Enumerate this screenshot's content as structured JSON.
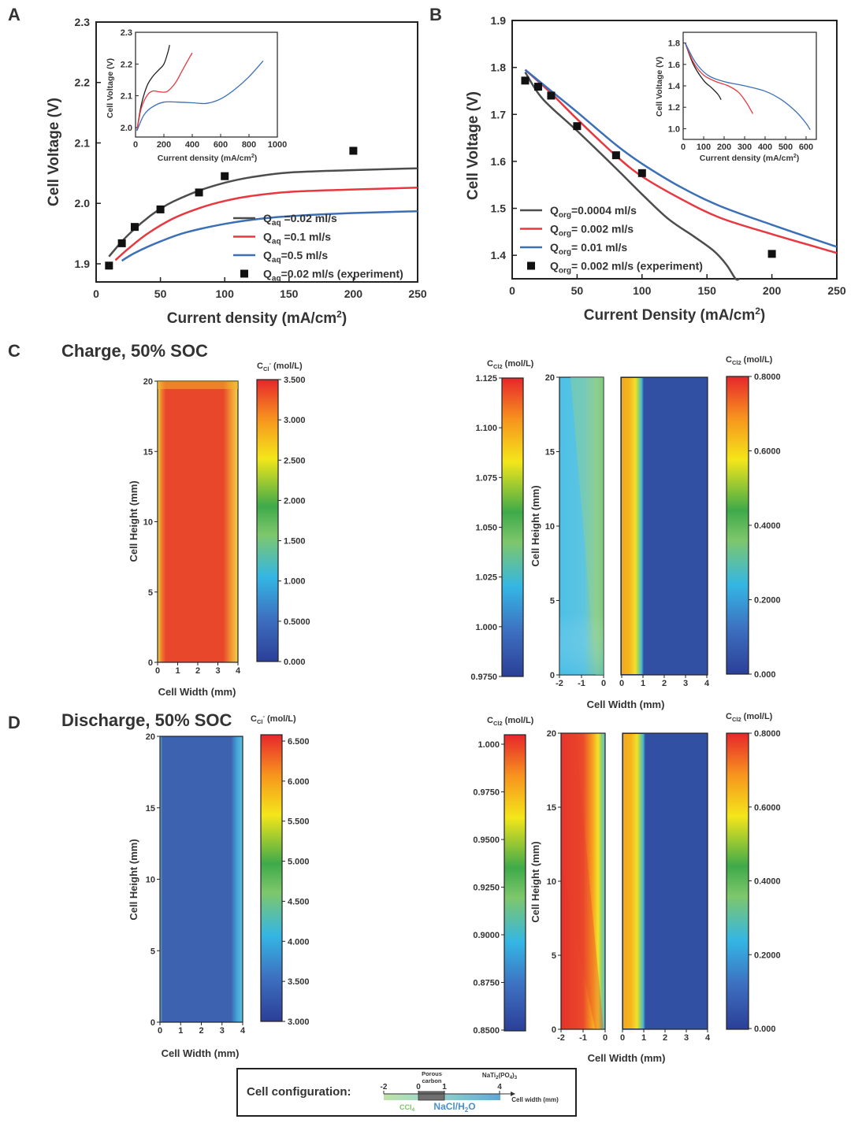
{
  "chart_data": [
    {
      "panel": "A",
      "type": "line",
      "xlabel": "Current density (mA/cm2)",
      "ylabel": "Cell Voltage (V)",
      "xlim": [
        0,
        250
      ],
      "ylim": [
        1.87,
        2.3
      ],
      "xticks": [
        "0",
        "50",
        "100",
        "150",
        "200",
        "250"
      ],
      "yticks": [
        "1.9",
        "2.0",
        "2.1",
        "2.2",
        "2.3"
      ],
      "series": [
        {
          "name": "Qaq =0.02 ml/s",
          "sub": "aq",
          "label_pre": "Q",
          "label_post": " =0.02 ml/s",
          "color": "#4d4d4d",
          "x": [
            10,
            20,
            30,
            40,
            50,
            60,
            80,
            100,
            120,
            150,
            200,
            250
          ],
          "y": [
            1.912,
            1.937,
            1.958,
            1.976,
            1.991,
            2.003,
            2.021,
            2.034,
            2.043,
            2.051,
            2.055,
            2.058
          ]
        },
        {
          "name": "Qaq =0.1 ml/s",
          "sub": "aq",
          "label_pre": "Q",
          "label_post": " =0.1 ml/s",
          "color": "#e8373f",
          "x": [
            15,
            25,
            40,
            60,
            80,
            100,
            120,
            150,
            200,
            250
          ],
          "y": [
            1.906,
            1.925,
            1.95,
            1.975,
            1.992,
            2.004,
            2.012,
            2.019,
            2.023,
            2.026
          ]
        },
        {
          "name": "Qaq=0.5 ml/s",
          "sub": "aq",
          "label_pre": "Q",
          "label_post": "=0.5 ml/s",
          "color": "#3b6fb6",
          "x": [
            20,
            30,
            50,
            70,
            100,
            130,
            160,
            200,
            250
          ],
          "y": [
            1.905,
            1.918,
            1.937,
            1.952,
            1.966,
            1.975,
            1.98,
            1.984,
            1.987
          ]
        }
      ],
      "experiment": {
        "name": "Qaq=0.02 ml/s (experiment)",
        "sub": "aq",
        "label_pre": "Q",
        "label_post": "=0.02 ml/s (experiment)",
        "x": [
          10,
          20,
          30,
          50,
          80,
          100,
          200
        ],
        "y": [
          1.897,
          1.934,
          1.961,
          1.99,
          2.018,
          2.045,
          2.087
        ]
      },
      "inset": {
        "xlabel": "Current density (mA/cm2)",
        "ylabel": "Cell Voltage (V)",
        "xlim": [
          0,
          1000
        ],
        "ylim": [
          1.97,
          2.3
        ],
        "xticks": [
          "0",
          "200",
          "400",
          "600",
          "800",
          "1000"
        ],
        "yticks": [
          "2.0",
          "2.1",
          "2.2",
          "2.3"
        ],
        "series": [
          {
            "color": "#222222",
            "x": [
              10,
              40,
              80,
              120,
              160,
              200,
              230,
              240
            ],
            "y": [
              1.99,
              2.07,
              2.13,
              2.16,
              2.18,
              2.2,
              2.24,
              2.26
            ]
          },
          {
            "color": "#e8373f",
            "x": [
              10,
              40,
              80,
              120,
              160,
              220,
              280,
              330,
              380,
              400
            ],
            "y": [
              1.99,
              2.06,
              2.1,
              2.115,
              2.113,
              2.113,
              2.14,
              2.18,
              2.22,
              2.235
            ]
          },
          {
            "color": "#3b6fb6",
            "x": [
              10,
              60,
              120,
              200,
              300,
              400,
              500,
              600,
              700,
              800,
              900
            ],
            "y": [
              1.99,
              2.04,
              2.065,
              2.08,
              2.08,
              2.078,
              2.076,
              2.09,
              2.12,
              2.16,
              2.21
            ]
          }
        ]
      }
    },
    {
      "panel": "B",
      "type": "line",
      "xlabel": "Current Density (mA/cm2)",
      "ylabel": "Cell Voltage (V)",
      "xlim": [
        0,
        250
      ],
      "ylim": [
        1.35,
        1.9
      ],
      "xticks": [
        "0",
        "50",
        "100",
        "150",
        "200",
        "250"
      ],
      "yticks": [
        "1.4",
        "1.5",
        "1.6",
        "1.7",
        "1.8",
        "1.9"
      ],
      "series": [
        {
          "name": "Qorg=0.0004 ml/s",
          "sub": "org",
          "label_pre": "Q",
          "label_post": "=0.0004 ml/s",
          "color": "#4d4d4d",
          "x": [
            10,
            20,
            30,
            50,
            80,
            100,
            120,
            140,
            155,
            165,
            172,
            175
          ],
          "y": [
            1.79,
            1.745,
            1.715,
            1.665,
            1.585,
            1.53,
            1.478,
            1.44,
            1.41,
            1.38,
            1.35,
            1.34
          ]
        },
        {
          "name": "Qorg= 0.002 ml/s",
          "sub": "org",
          "label_pre": "Q",
          "label_post": "= 0.002 ml/s",
          "color": "#e8373f",
          "x": [
            10,
            30,
            50,
            80,
            100,
            130,
            160,
            200,
            250
          ],
          "y": [
            1.795,
            1.745,
            1.69,
            1.612,
            1.568,
            1.52,
            1.48,
            1.445,
            1.405
          ]
        },
        {
          "name": "Qorg= 0.01 ml/s",
          "sub": "org",
          "label_pre": "Q",
          "label_post": "= 0.01 ml/s",
          "color": "#3b6fb6",
          "x": [
            10,
            30,
            50,
            80,
            100,
            130,
            160,
            200,
            250
          ],
          "y": [
            1.795,
            1.75,
            1.705,
            1.635,
            1.595,
            1.545,
            1.505,
            1.465,
            1.418
          ]
        }
      ],
      "experiment": {
        "name": "Qorg= 0.002 ml/s (experiment)",
        "sub": "org",
        "label_pre": "Q",
        "label_post": "= 0.002 ml/s (experiment)",
        "x": [
          10,
          20,
          30,
          50,
          80,
          100,
          200
        ],
        "y": [
          1.772,
          1.759,
          1.74,
          1.675,
          1.613,
          1.575,
          1.403
        ]
      },
      "inset": {
        "xlabel": "Current density (mA/cm2)",
        "ylabel": "Cell Voltage (V)",
        "xlim": [
          0,
          650
        ],
        "ylim": [
          0.9,
          1.9
        ],
        "xticks": [
          "0",
          "100",
          "200",
          "300",
          "400",
          "500",
          "600"
        ],
        "yticks": [
          "1.0",
          "1.2",
          "1.4",
          "1.6",
          "1.8"
        ],
        "series": [
          {
            "color": "#222222",
            "x": [
              10,
              50,
              100,
              140,
              170,
              185
            ],
            "y": [
              1.8,
              1.6,
              1.45,
              1.38,
              1.32,
              1.27
            ]
          },
          {
            "color": "#e8373f",
            "x": [
              10,
              50,
              100,
              160,
              220,
              270,
              310,
              340
            ],
            "y": [
              1.8,
              1.62,
              1.5,
              1.44,
              1.4,
              1.34,
              1.24,
              1.14
            ]
          },
          {
            "color": "#3b6fb6",
            "x": [
              10,
              60,
              120,
              200,
              300,
              400,
              480,
              550,
              600,
              620
            ],
            "y": [
              1.8,
              1.62,
              1.5,
              1.44,
              1.4,
              1.35,
              1.27,
              1.16,
              1.05,
              0.99
            ]
          }
        ]
      }
    },
    {
      "panel": "C",
      "type": "heatmap",
      "title": "Charge, 50% SOC",
      "left": {
        "colorbar_title": "CCl- (mol/L)",
        "species_main": "C",
        "species_sub": "Cl",
        "species_sup": "-",
        "unit": " (mol/L)",
        "ticks": [
          "3.500",
          "3.000",
          "2.500",
          "2.000",
          "1.500",
          "1.000",
          "0.5000",
          "0.000"
        ],
        "xticks": [
          "0",
          "1",
          "2",
          "3",
          "4"
        ],
        "yticks": [
          "20",
          "15",
          "10",
          "5",
          "0"
        ],
        "xlabel": "Cell Width (mm)",
        "ylabel": "Cell Height (mm)"
      },
      "right": {
        "left_colorbar_title": "CCl2 (mol/L)",
        "species_main": "C",
        "species_sub": "Cl2",
        "unit": " (mol/L)",
        "left_ticks": [
          "1.125",
          "1.100",
          "1.075",
          "1.050",
          "1.025",
          "1.000",
          "0.9750"
        ],
        "right_colorbar_title": "CCl2 (mol/L)",
        "right_ticks": [
          "0.8000",
          "0.6000",
          "0.4000",
          "0.2000",
          "0.000"
        ],
        "xticks_left": [
          "-2",
          "-1",
          "0"
        ],
        "xticks_right": [
          "0",
          "1",
          "2",
          "3",
          "4"
        ],
        "yticks": [
          "20",
          "15",
          "10",
          "5",
          "0"
        ],
        "xlabel": "Cell Width (mm)",
        "ylabel": "Cell Height (mm)"
      }
    },
    {
      "panel": "D",
      "type": "heatmap",
      "title": "Discharge, 50% SOC",
      "left": {
        "colorbar_title": "CCl- (mol/L)",
        "species_main": "C",
        "species_sub": "Cl",
        "species_sup": "-",
        "unit": " (mol/L)",
        "ticks": [
          "6.500",
          "6.000",
          "5.500",
          "5.000",
          "4.500",
          "4.000",
          "3.500",
          "3.000"
        ],
        "xticks": [
          "0",
          "1",
          "2",
          "3",
          "4"
        ],
        "yticks": [
          "20",
          "15",
          "10",
          "5",
          "0"
        ],
        "xlabel": "Cell Width (mm)",
        "ylabel": "Cell Height (mm)"
      },
      "right": {
        "left_colorbar_title": "CCl2 (mol/L)",
        "species_main": "C",
        "species_sub": "Cl2",
        "unit": " (mol/L)",
        "left_ticks": [
          "1.000",
          "0.9750",
          "0.9500",
          "0.9250",
          "0.9000",
          "0.8750",
          "0.8500"
        ],
        "right_colorbar_title": "CCl2 (mol/L)",
        "right_ticks": [
          "0.8000",
          "0.6000",
          "0.4000",
          "0.2000",
          "0.000"
        ],
        "xticks_left": [
          "-2",
          "-1",
          "0"
        ],
        "xticks_right": [
          "0",
          "1",
          "2",
          "3",
          "4"
        ],
        "yticks": [
          "20",
          "15",
          "10",
          "5",
          "0"
        ],
        "xlabel": "Cell Width (mm)",
        "ylabel": "Cell Height (mm)"
      }
    }
  ],
  "config": {
    "label": "Cell configuration:",
    "ticks": [
      "-2",
      "0",
      "1",
      "4"
    ],
    "porous_label_1": "Porous",
    "porous_label_2": "carbon",
    "nati_label": "NaTi2(PO4)3",
    "axis_label": "Cell width (mm)",
    "ccl4_label": "CCl4",
    "nacl_label": "NaCl/H2O"
  },
  "letters": {
    "A": "A",
    "B": "B",
    "C": "C",
    "D": "D"
  },
  "colors": {
    "black": "#4d4d4d",
    "red": "#e8373f",
    "blue": "#3b6fb6",
    "map_blue": "#3150a4",
    "map_red": "#e8452a"
  }
}
